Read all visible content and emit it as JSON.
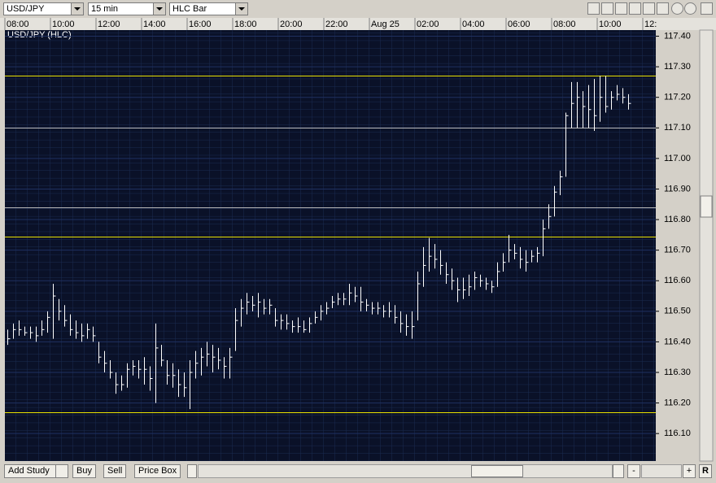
{
  "toolbar": {
    "symbol": "USD/JPY",
    "interval": "15 min",
    "chart_style": "HLC Bar"
  },
  "bottom_bar": {
    "add_study": "Add Study",
    "buy": "Buy",
    "sell": "Sell",
    "price_box": "Price Box",
    "minus": "-",
    "plus": "+",
    "reset": "R"
  },
  "chart_data": {
    "type": "hlc",
    "title": "USD/JPY (HLC)",
    "categories": [
      "08:00",
      null,
      null,
      null,
      null,
      null,
      null,
      null,
      "10:00",
      null,
      null,
      null,
      null,
      null,
      null,
      null,
      "12:00",
      null,
      null,
      null,
      null,
      null,
      null,
      null,
      "14:00",
      null,
      null,
      null,
      null,
      null,
      null,
      null,
      "16:00",
      null,
      null,
      null,
      null,
      null,
      null,
      null,
      "18:00",
      null,
      null,
      null,
      null,
      null,
      null,
      null,
      "20:00",
      null,
      null,
      null,
      null,
      null,
      null,
      null,
      "22:00",
      null,
      null,
      null,
      null,
      null,
      null,
      null,
      "Aug 25",
      null,
      null,
      null,
      null,
      null,
      null,
      null,
      "02:00",
      null,
      null,
      null,
      null,
      null,
      null,
      null,
      "04:00",
      null,
      null,
      null,
      null,
      null,
      null,
      null,
      "06:00",
      null,
      null,
      null,
      null,
      null,
      null,
      null,
      "08:00",
      null,
      null,
      null,
      null,
      null,
      null,
      null,
      "10:00",
      null,
      null,
      null,
      null,
      null,
      null,
      null,
      "12:",
      null
    ],
    "high": [
      116.44,
      116.46,
      116.47,
      116.45,
      116.45,
      116.45,
      116.47,
      116.5,
      116.59,
      116.54,
      116.52,
      116.49,
      116.47,
      116.46,
      116.46,
      116.45,
      116.4,
      116.37,
      116.34,
      116.3,
      116.29,
      116.33,
      116.34,
      116.34,
      116.35,
      116.32,
      116.46,
      116.39,
      116.34,
      116.33,
      116.31,
      116.3,
      116.34,
      116.37,
      116.38,
      116.4,
      116.39,
      116.38,
      116.35,
      116.38,
      116.51,
      116.54,
      116.56,
      116.55,
      116.56,
      116.54,
      116.54,
      116.51,
      116.49,
      116.49,
      116.47,
      116.48,
      116.47,
      116.48,
      116.5,
      116.52,
      116.53,
      116.55,
      116.56,
      116.56,
      116.59,
      116.58,
      116.58,
      116.54,
      116.53,
      116.53,
      116.52,
      116.53,
      116.52,
      116.5,
      116.49,
      116.5,
      116.63,
      116.71,
      116.74,
      116.72,
      116.7,
      116.66,
      116.64,
      116.61,
      116.61,
      116.62,
      116.63,
      116.62,
      116.61,
      116.6,
      116.66,
      116.69,
      116.75,
      116.72,
      116.71,
      116.7,
      116.7,
      116.71,
      116.8,
      116.85,
      116.91,
      116.96,
      117.15,
      117.25,
      117.25,
      117.22,
      117.24,
      117.26,
      117.27,
      117.27,
      117.22,
      117.24,
      117.23,
      117.21,
      null,
      null,
      null,
      null
    ],
    "low": [
      116.39,
      116.41,
      116.42,
      116.42,
      116.41,
      116.4,
      116.42,
      116.43,
      116.41,
      116.47,
      116.45,
      116.42,
      116.41,
      116.4,
      116.41,
      116.4,
      116.33,
      116.3,
      116.28,
      116.23,
      116.24,
      116.25,
      116.29,
      116.28,
      116.26,
      116.24,
      116.2,
      116.32,
      116.26,
      116.25,
      116.22,
      116.22,
      116.18,
      116.28,
      116.29,
      116.32,
      116.3,
      116.31,
      116.28,
      116.28,
      116.37,
      116.45,
      116.49,
      116.5,
      116.48,
      116.49,
      116.49,
      116.45,
      116.44,
      116.44,
      116.43,
      116.43,
      116.43,
      116.43,
      116.46,
      116.47,
      116.49,
      116.51,
      116.52,
      116.52,
      116.52,
      116.53,
      116.5,
      116.5,
      116.49,
      116.49,
      116.48,
      116.48,
      116.46,
      116.43,
      116.42,
      116.41,
      116.47,
      116.58,
      116.63,
      116.64,
      116.62,
      116.59,
      116.57,
      116.53,
      116.54,
      116.55,
      116.57,
      116.58,
      116.57,
      116.56,
      116.58,
      116.63,
      116.66,
      116.67,
      116.64,
      116.63,
      116.66,
      116.66,
      116.68,
      116.77,
      116.81,
      116.88,
      116.94,
      117.1,
      117.1,
      117.1,
      117.1,
      117.09,
      117.12,
      117.15,
      117.16,
      117.19,
      117.18,
      117.16,
      null,
      null,
      null,
      null
    ],
    "close": [
      116.41,
      116.44,
      116.44,
      116.43,
      116.43,
      116.42,
      116.44,
      116.48,
      116.55,
      116.5,
      116.47,
      116.44,
      116.43,
      116.42,
      116.44,
      116.42,
      116.35,
      116.33,
      116.3,
      116.26,
      116.26,
      116.31,
      116.32,
      116.31,
      116.31,
      116.28,
      116.38,
      116.34,
      116.29,
      116.29,
      116.26,
      116.25,
      116.3,
      116.33,
      116.35,
      116.36,
      116.35,
      116.34,
      116.32,
      116.35,
      116.47,
      116.51,
      116.53,
      116.52,
      116.53,
      116.51,
      116.52,
      116.47,
      116.47,
      116.46,
      116.45,
      116.45,
      116.44,
      116.46,
      116.48,
      116.5,
      116.51,
      116.53,
      116.54,
      116.54,
      116.56,
      116.55,
      116.53,
      116.52,
      116.51,
      116.51,
      116.5,
      116.5,
      116.48,
      116.46,
      116.45,
      116.45,
      116.59,
      116.65,
      116.68,
      116.67,
      116.65,
      116.62,
      116.6,
      116.57,
      116.57,
      116.58,
      116.61,
      116.6,
      116.59,
      116.58,
      116.63,
      116.66,
      116.7,
      116.69,
      116.67,
      116.66,
      116.68,
      116.69,
      116.77,
      116.81,
      116.89,
      116.94,
      117.14,
      117.18,
      117.2,
      117.17,
      117.16,
      117.14,
      117.2,
      117.17,
      117.2,
      117.21,
      117.2,
      117.18,
      null,
      null,
      null,
      null
    ],
    "color": "#ffffff",
    "ylim": [
      116.01,
      117.42
    ],
    "yticks": [
      {
        "value": 117.4,
        "label": "117.40"
      },
      {
        "value": 117.3,
        "label": "117.30"
      },
      {
        "value": 117.2,
        "label": "117.20"
      },
      {
        "value": 117.1,
        "label": "117.10"
      },
      {
        "value": 117.0,
        "label": "117.00"
      },
      {
        "value": 116.9,
        "label": "116.90"
      },
      {
        "value": 116.8,
        "label": "116.80"
      },
      {
        "value": 116.7,
        "label": "116.70"
      },
      {
        "value": 116.6,
        "label": "116.60"
      },
      {
        "value": 116.5,
        "label": "116.50"
      },
      {
        "value": 116.4,
        "label": "116.40"
      },
      {
        "value": 116.3,
        "label": "116.30"
      },
      {
        "value": 116.2,
        "label": "116.20"
      },
      {
        "value": 116.1,
        "label": "116.10"
      }
    ],
    "grid": true,
    "hlines": [
      {
        "value": 117.27,
        "color": "#e8e000"
      },
      {
        "value": 117.1,
        "color": "#b8b8b8"
      },
      {
        "value": 116.84,
        "color": "#b8b8b8"
      },
      {
        "value": 116.745,
        "color": "#e8e000"
      },
      {
        "value": 116.17,
        "color": "#e8e000"
      }
    ]
  }
}
